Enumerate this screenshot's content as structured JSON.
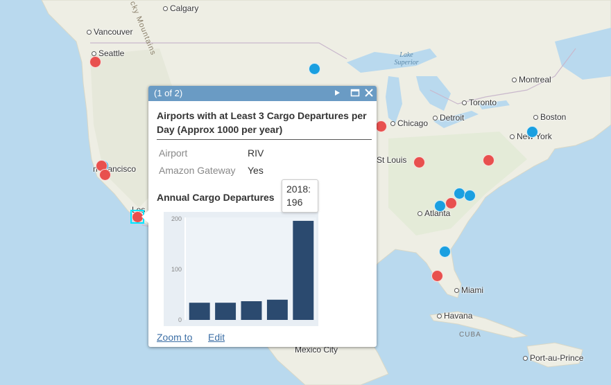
{
  "map": {
    "cities": [
      {
        "key": "calgary",
        "name": "Calgary"
      },
      {
        "key": "vancouver",
        "name": "Vancouver"
      },
      {
        "key": "seattle",
        "name": "Seattle"
      },
      {
        "key": "sanfrancisco",
        "name": "n Francisco"
      },
      {
        "key": "los",
        "name": "Los"
      },
      {
        "key": "chicago",
        "name": "Chicago"
      },
      {
        "key": "detroit",
        "name": "Detroit"
      },
      {
        "key": "toronto",
        "name": "Toronto"
      },
      {
        "key": "montreal",
        "name": "Montreal"
      },
      {
        "key": "boston",
        "name": "Boston"
      },
      {
        "key": "newyork",
        "name": "New York"
      },
      {
        "key": "stlouis",
        "name": "St Louis"
      },
      {
        "key": "atlanta",
        "name": "Atlanta"
      },
      {
        "key": "miami",
        "name": "Miami"
      },
      {
        "key": "havana",
        "name": "Havana"
      },
      {
        "key": "mexicocity",
        "name": "Mexico City"
      },
      {
        "key": "portauprince",
        "name": "Port-au-Prince"
      }
    ],
    "lake_label": "Lake\nSuperior",
    "mountain_label": "cky Mountains",
    "cuba_label": "CUBA",
    "colors": {
      "red": "#e8504e",
      "blue": "#1a9fe0",
      "water": "#b9d9ee",
      "land": "#efefe6",
      "selection": "#00e5ff"
    }
  },
  "popup": {
    "pager": "(1 of 2)",
    "next_icon": "play-icon",
    "maximize_icon": "maximize-icon",
    "close_icon": "close-icon",
    "title": "Airports with at Least 3 Cargo Departures per Day (Approx 1000 per year)",
    "attributes": [
      {
        "name": "Airport",
        "value": "RIV"
      },
      {
        "name": "Amazon Gateway",
        "value": "Yes"
      }
    ],
    "chart_title": "Annual Cargo Departures",
    "tooltip_line1": "2018:",
    "tooltip_line2": "196",
    "zoom_to": "Zoom to",
    "edit": "Edit",
    "header_color": "#6a9bc4",
    "bar_color": "#2b4a6f"
  },
  "chart_data": {
    "type": "bar",
    "categories": [
      "",
      "",
      "",
      "",
      "2018"
    ],
    "values": [
      34,
      34,
      37,
      40,
      196
    ],
    "title": "Annual Cargo Departures",
    "ylim": [
      0,
      200
    ],
    "yticks": [
      "0",
      "100",
      "200"
    ],
    "grid": false
  }
}
